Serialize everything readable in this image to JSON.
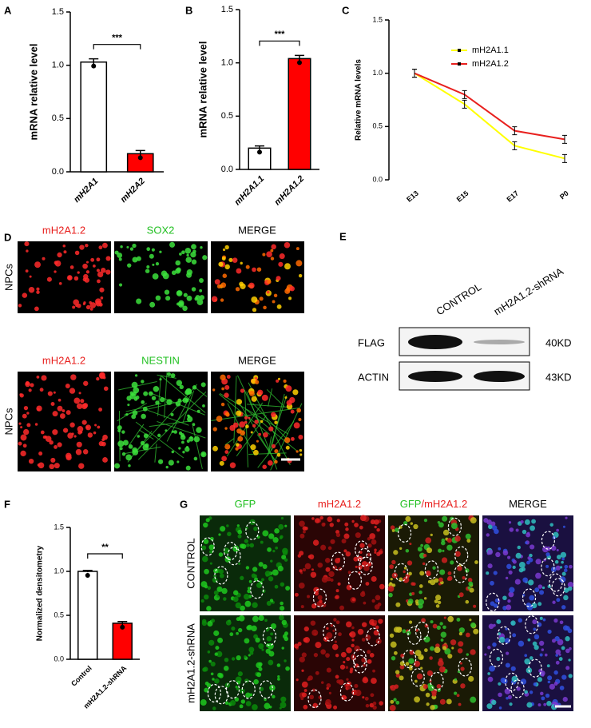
{
  "chart_data": [
    {
      "type": "bar",
      "panel_label": "A",
      "y_label": "mRNA relative level",
      "categories": [
        "mH2A1",
        "mH2A2"
      ],
      "values": [
        1.03,
        0.17
      ],
      "errors": [
        0.03,
        0.03
      ],
      "colors": [
        "#ffffff",
        "#ff0000"
      ],
      "ylim": [
        0,
        1.5
      ],
      "yticks": [
        {
          "value": 0,
          "label": "0.0"
        },
        0.5,
        {
          "value": 1,
          "label": "1.0"
        },
        1.5
      ],
      "significance": "***"
    },
    {
      "type": "bar",
      "panel_label": "B",
      "y_label": "mRNA relative level",
      "categories": [
        "mH2A1.1",
        "mH2A1.2"
      ],
      "values": [
        0.2,
        1.04
      ],
      "errors": [
        0.02,
        0.03
      ],
      "colors": [
        "#ffffff",
        "#ff0000"
      ],
      "ylim": [
        0,
        1.5
      ],
      "yticks": [
        {
          "value": 0,
          "label": "0.0"
        },
        0.5,
        {
          "value": 1,
          "label": "1.0"
        },
        1.5
      ],
      "significance": "***"
    },
    {
      "type": "line",
      "panel_label": "C",
      "y_label": "Relative mRNA levels",
      "categories": [
        "E13",
        "E15",
        "E17",
        "P0"
      ],
      "series": [
        {
          "name": "mH2A1.1",
          "color": "#ffff00",
          "values": [
            1.0,
            0.71,
            0.32,
            0.2
          ]
        },
        {
          "name": "mH2A1.2",
          "color": "#e8201e",
          "values": [
            1.0,
            0.8,
            0.46,
            0.38
          ]
        }
      ],
      "ylim": [
        0,
        1.5
      ],
      "yticks": [
        {
          "value": 0,
          "label": "0.0"
        },
        0.5,
        {
          "value": 1,
          "label": "1.0"
        },
        1.5
      ],
      "legend": "upper right"
    },
    {
      "type": "bar",
      "panel_label": "F",
      "y_label": "Normalized densitometry",
      "categories": [
        "Control",
        "mH2A1.2-shRNA"
      ],
      "values": [
        1.0,
        0.41
      ],
      "errors": [
        0.01,
        0.02
      ],
      "colors": [
        "#ffffff",
        "#ff0000"
      ],
      "ylim": [
        0,
        1.5
      ],
      "yticks": [
        {
          "value": 0,
          "label": "0.0"
        },
        0.5,
        {
          "value": 1,
          "label": "1.0"
        },
        1.5
      ],
      "significance": "**"
    }
  ],
  "panel_d": {
    "label": "D",
    "rows": [
      {
        "label": "NPCs",
        "columns": [
          "mH2A1.2",
          "SOX2",
          "MERGE"
        ]
      },
      {
        "label": "NPCs",
        "columns": [
          "mH2A1.2",
          "NESTIN",
          "MERGE"
        ]
      }
    ]
  },
  "panel_e": {
    "label": "E",
    "lanes": [
      "CONTROL",
      "mH2A1.2-shRNA"
    ],
    "bands": [
      {
        "name": "FLAG",
        "size": "40KD"
      },
      {
        "name": "ACTIN",
        "size": "43KD"
      }
    ]
  },
  "panel_g": {
    "label": "G",
    "columns": [
      [
        "GFP"
      ],
      [
        "mH2A1.2"
      ],
      [
        "GFP",
        "/mH2A1.2"
      ],
      [
        "MERGE"
      ]
    ],
    "rows": [
      "CONTROL",
      "mH2A1.2-shRNA"
    ]
  }
}
